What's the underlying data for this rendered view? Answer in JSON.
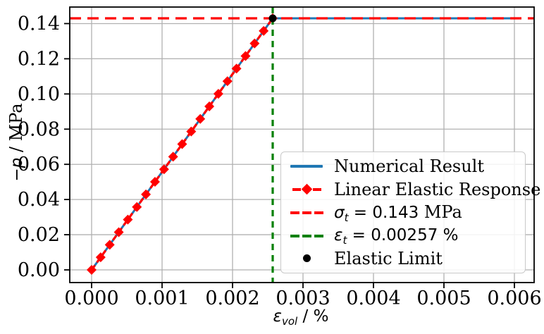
{
  "chart_data": {
    "type": "line",
    "title": "",
    "xlabel": "ε_vol / %",
    "ylabel": "−p / MPa",
    "xlim": [
      -0.00031,
      0.00628
    ],
    "ylim": [
      -0.0072,
      0.1494
    ],
    "x_ticks": [
      0.0,
      0.001,
      0.002,
      0.003,
      0.004,
      0.005,
      0.006
    ],
    "x_tick_labels": [
      "0.000",
      "0.001",
      "0.002",
      "0.003",
      "0.004",
      "0.005",
      "0.006"
    ],
    "y_ticks": [
      0.0,
      0.02,
      0.04,
      0.06,
      0.08,
      0.1,
      0.12,
      0.14
    ],
    "y_tick_labels": [
      "0.00",
      "0.02",
      "0.04",
      "0.06",
      "0.08",
      "0.10",
      "0.12",
      "0.14"
    ],
    "grid": true,
    "grid_color": "#b0b0b0",
    "legend_position": "lower-right-inside",
    "series": [
      {
        "name": "Numerical Result",
        "color": "#1f77b4",
        "line_style": "solid",
        "marker": "none",
        "x": [
          0.0,
          0.00257,
          0.0061
        ],
        "y": [
          0.0,
          0.143,
          0.143
        ]
      },
      {
        "name": "Linear Elastic Response",
        "color": "#ff0000",
        "line_style": "dashed",
        "marker": "diamond",
        "x": [
          0.0,
          0.0001285,
          0.000257,
          0.0003855,
          0.000514,
          0.0006425,
          0.000771,
          0.0008995,
          0.001028,
          0.0011565,
          0.001285,
          0.0014135,
          0.001542,
          0.0016705,
          0.001799,
          0.0019275,
          0.002056,
          0.0021845,
          0.002313,
          0.0024415,
          0.00257
        ],
        "y": [
          0.0,
          0.00715,
          0.0143,
          0.02145,
          0.0286,
          0.03575,
          0.0429,
          0.05005,
          0.0572,
          0.06435,
          0.0715,
          0.07865,
          0.0858,
          0.09295,
          0.1001,
          0.10725,
          0.1144,
          0.12155,
          0.1287,
          0.13585,
          0.143
        ]
      }
    ],
    "reference_lines": [
      {
        "name": "tensile-strength-line",
        "orientation": "horizontal",
        "value": 0.143,
        "color": "#ff0000",
        "line_style": "dashed",
        "label": "σt = 0.143 MPa"
      },
      {
        "name": "tensile-strain-line",
        "orientation": "vertical",
        "value": 0.00257,
        "color": "#008000",
        "line_style": "dashed",
        "label": "εt = 0.00257 %"
      }
    ],
    "points": [
      {
        "name": "Elastic Limit",
        "x": 0.00257,
        "y": 0.143,
        "color": "#000000",
        "marker": "circle"
      }
    ]
  },
  "axis_labels": {
    "x": {
      "parts": [
        {
          "text": "ε",
          "style": "mi"
        },
        {
          "text": "vol",
          "style": "sub"
        },
        {
          "text": " / %",
          "style": "math"
        }
      ]
    },
    "y": {
      "parts": [
        {
          "text": "−p",
          "style": "mi"
        },
        {
          "text": " / MPa",
          "style": "text"
        }
      ]
    }
  },
  "legend": {
    "items": [
      {
        "name": "numerical-result",
        "swatch": "line",
        "color": "#1f77b4",
        "parts": [
          {
            "text": "Numerical Result",
            "style": "text"
          }
        ]
      },
      {
        "name": "linear-elastic-response",
        "swatch": "dash-diamond",
        "color": "#ff0000",
        "parts": [
          {
            "text": "Linear Elastic Response",
            "style": "text"
          }
        ]
      },
      {
        "name": "sigma-t",
        "swatch": "dashes",
        "color": "#ff0000",
        "parts": [
          {
            "text": "σ",
            "style": "mi"
          },
          {
            "text": "t",
            "style": "sub"
          },
          {
            "text": " = 0.143",
            "style": "math"
          },
          {
            "text": " MPa",
            "style": "text"
          }
        ]
      },
      {
        "name": "epsilon-t",
        "swatch": "dashes",
        "color": "#008000",
        "parts": [
          {
            "text": "ε",
            "style": "mi"
          },
          {
            "text": "t",
            "style": "sub"
          },
          {
            "text": " = 0.00257 %",
            "style": "math"
          }
        ]
      },
      {
        "name": "elastic-limit",
        "swatch": "dot",
        "color": "#000000",
        "parts": [
          {
            "text": "Elastic Limit",
            "style": "text"
          }
        ]
      }
    ]
  }
}
